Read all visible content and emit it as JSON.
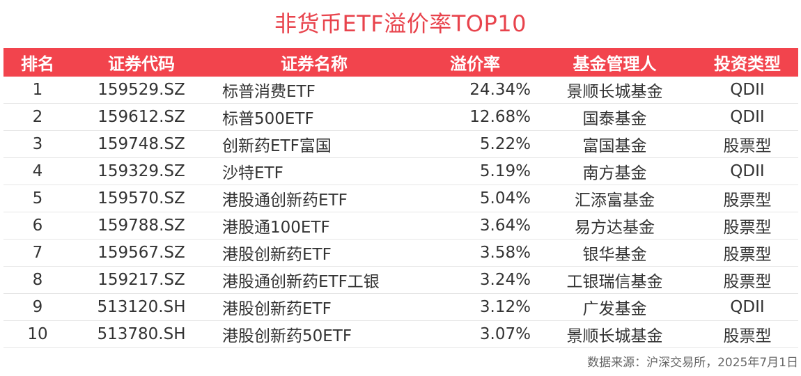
{
  "title": "非货币ETF溢价率TOP10",
  "table": {
    "headers": [
      "排名",
      "证券代码",
      "证券名称",
      "溢价率",
      "基金管理人",
      "投资类型"
    ],
    "rows": [
      {
        "rank": "1",
        "code": "159529.SZ",
        "name": "标普消费ETF",
        "premium": "24.34%",
        "manager": "景顺长城基金",
        "type": "QDII"
      },
      {
        "rank": "2",
        "code": "159612.SZ",
        "name": "标普500ETF",
        "premium": "12.68%",
        "manager": "国泰基金",
        "type": "QDII"
      },
      {
        "rank": "3",
        "code": "159748.SZ",
        "name": "创新药ETF富国",
        "premium": "5.22%",
        "manager": "富国基金",
        "type": "股票型"
      },
      {
        "rank": "4",
        "code": "159329.SZ",
        "name": "沙特ETF",
        "premium": "5.19%",
        "manager": "南方基金",
        "type": "QDII"
      },
      {
        "rank": "5",
        "code": "159570.SZ",
        "name": "港股通创新药ETF",
        "premium": "5.04%",
        "manager": "汇添富基金",
        "type": "股票型"
      },
      {
        "rank": "6",
        "code": "159788.SZ",
        "name": "港股通100ETF",
        "premium": "3.64%",
        "manager": "易方达基金",
        "type": "股票型"
      },
      {
        "rank": "7",
        "code": "159567.SZ",
        "name": "港股创新药ETF",
        "premium": "3.58%",
        "manager": "银华基金",
        "type": "股票型"
      },
      {
        "rank": "8",
        "code": "159217.SZ",
        "name": "港股通创新药ETF工银",
        "premium": "3.24%",
        "manager": "工银瑞信基金",
        "type": "股票型"
      },
      {
        "rank": "9",
        "code": "513120.SH",
        "name": "港股创新药ETF",
        "premium": "3.12%",
        "manager": "广发基金",
        "type": "QDII"
      },
      {
        "rank": "10",
        "code": "513780.SH",
        "name": "港股创新药50ETF",
        "premium": "3.07%",
        "manager": "景顺长城基金",
        "type": "股票型"
      }
    ]
  },
  "source": "数据来源：沪深交易所，2025年7月1日",
  "colors": {
    "accent": "#f2444d",
    "title": "#e8434c",
    "text": "#333333",
    "source": "#666666"
  }
}
